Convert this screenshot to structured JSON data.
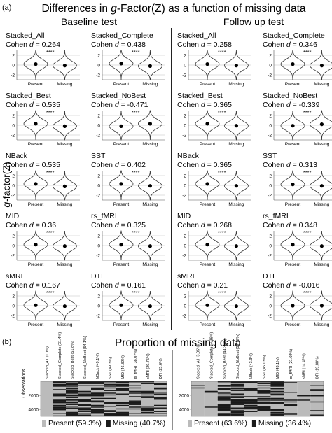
{
  "panel_a": {
    "letter": "(a)",
    "title_pre": "Differences in ",
    "title_g": "g",
    "title_post": "-Factor(Z) as a function of missing data",
    "y_axis_label_g": "g",
    "y_axis_label_rest": "-factor(Z)",
    "column_titles": [
      "Baseline test",
      "Follow up test"
    ],
    "effect_prefix": "Cohen ",
    "effect_symbol": "d",
    "effect_equals": " = ",
    "y_ticks": [
      "2",
      "0",
      "-2"
    ],
    "x_labels": [
      "Present",
      "Missing"
    ],
    "significance": "****"
  },
  "chart_data": [
    {
      "type": "violin",
      "panel": "Baseline test",
      "ylim": [
        -3,
        3
      ],
      "categories": [
        "Present",
        "Missing"
      ],
      "plots": [
        {
          "name": "Stacked_All",
          "cohen_d": "0.264",
          "medians": [
            0.2,
            -0.1
          ]
        },
        {
          "name": "Stacked_Complete",
          "cohen_d": "0.438",
          "medians": [
            0.3,
            -0.2
          ]
        },
        {
          "name": "Stacked_Best",
          "cohen_d": "0.535",
          "medians": [
            0.3,
            -0.2
          ]
        },
        {
          "name": "Stacked_NoBest",
          "cohen_d": "-0.471",
          "medians": [
            -0.2,
            0.3
          ]
        },
        {
          "name": "NBack",
          "cohen_d": "0.535",
          "medians": [
            0.3,
            -0.2
          ]
        },
        {
          "name": "SST",
          "cohen_d": "0.402",
          "medians": [
            0.3,
            -0.1
          ]
        },
        {
          "name": "MID",
          "cohen_d": "0.36",
          "medians": [
            0.2,
            -0.1
          ]
        },
        {
          "name": "rs_fMRI",
          "cohen_d": "0.325",
          "medians": [
            0.2,
            -0.1
          ]
        },
        {
          "name": "sMRI",
          "cohen_d": "0.167",
          "medians": [
            0.1,
            -0.1
          ]
        },
        {
          "name": "DTI",
          "cohen_d": "0.161",
          "medians": [
            0.1,
            -0.1
          ]
        }
      ]
    },
    {
      "type": "violin",
      "panel": "Follow up test",
      "ylim": [
        -3,
        3
      ],
      "categories": [
        "Present",
        "Missing"
      ],
      "plots": [
        {
          "name": "Stacked_All",
          "cohen_d": "0.258",
          "medians": [
            0.2,
            -0.1
          ]
        },
        {
          "name": "Stacked_Complete",
          "cohen_d": "0.346",
          "medians": [
            0.2,
            -0.1
          ]
        },
        {
          "name": "Stacked_Best",
          "cohen_d": "0.365",
          "medians": [
            0.3,
            -0.1
          ]
        },
        {
          "name": "Stacked_NoBest",
          "cohen_d": "-0.339",
          "medians": [
            -0.1,
            0.2
          ]
        },
        {
          "name": "NBack",
          "cohen_d": "0.365",
          "medians": [
            0.3,
            -0.1
          ]
        },
        {
          "name": "SST",
          "cohen_d": "0.313",
          "medians": [
            0.2,
            -0.1
          ]
        },
        {
          "name": "MID",
          "cohen_d": "0.268",
          "medians": [
            0.2,
            -0.1
          ]
        },
        {
          "name": "rs_fMRI",
          "cohen_d": "0.348",
          "medians": [
            0.2,
            -0.1
          ]
        },
        {
          "name": "sMRI",
          "cohen_d": "0.21",
          "medians": [
            0.1,
            -0.1
          ]
        },
        {
          "name": "DTI",
          "cohen_d": "-0.016",
          "medians": [
            0.0,
            0.0
          ]
        }
      ]
    },
    {
      "type": "heatmap",
      "panel": "Baseline missingness",
      "ylabel": "Observations",
      "y_ticks": [
        "2000",
        "4000"
      ],
      "columns": [
        "Stacked_All (0.0%)",
        "Stacked_Complete (31.4%)",
        "Stacked_Best (51.8%)",
        "Stacked_NoBest (54.1%)",
        "NBack (49.1%)",
        "SST (49.3%)",
        "MID (46.89%)",
        "rs_fMRI (38.07%)",
        "sMRI (29.75%)",
        "DTI (25.6%)"
      ],
      "missing_fraction": [
        0.0,
        0.314,
        0.518,
        0.541,
        0.491,
        0.493,
        0.4689,
        0.3807,
        0.2975,
        0.256
      ],
      "legend": [
        {
          "label": "Present (59.3%)",
          "value": 59.3,
          "color": "#bbbbbb"
        },
        {
          "label": "Missing (40.7%)",
          "value": 40.7,
          "color": "#1a1a1a"
        }
      ]
    },
    {
      "type": "heatmap",
      "panel": "Follow-up missingness",
      "y_ticks": [
        "2000",
        "4000"
      ],
      "columns": [
        "Stacked_All (3.05%)",
        "Stacked_Complete (7.36%)",
        "Stacked_Best (44.36%)",
        "Stacked_NoBest (59.79%)",
        "NBack (43.3%)",
        "SST (45.03%)",
        "MID (43.1%)",
        "rs_fMRI (21.69%)",
        "sMRI (14.42%)",
        "DTI (19.88%)"
      ],
      "missing_fraction": [
        0.0305,
        0.0736,
        0.4436,
        0.5979,
        0.433,
        0.4503,
        0.431,
        0.2169,
        0.1442,
        0.1988
      ],
      "legend": [
        {
          "label": "Present (63.6%)",
          "value": 63.6,
          "color": "#bbbbbb"
        },
        {
          "label": "Missing (36.4%)",
          "value": 36.4,
          "color": "#1a1a1a"
        }
      ]
    }
  ],
  "panel_b": {
    "letter": "(b)",
    "title": "Proportion of missing data"
  },
  "colors": {
    "present": "#bbbbbb",
    "missing": "#1a1a1a",
    "grid": "#bfbfbf",
    "outline": "#333333"
  }
}
